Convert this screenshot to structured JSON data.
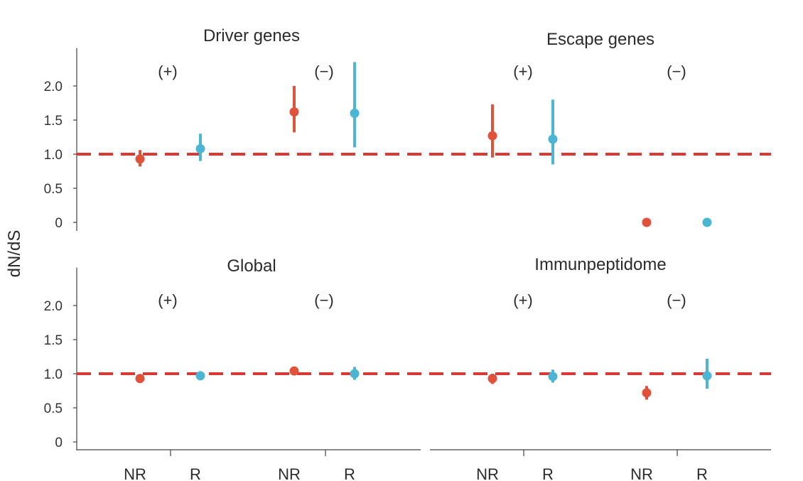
{
  "chart_data": {
    "type": "scatter",
    "ylabel": "dN/dS",
    "reference_line": 1.0,
    "reference_color": "#d93a35",
    "colors": {
      "NR": "#e1523a",
      "R": "#4ab6d4"
    },
    "yticks": [
      "0",
      "0.5",
      "1.0",
      "1.5",
      "2.0"
    ],
    "ylim": [
      0,
      2.4
    ],
    "x_categories": [
      "NR",
      "R",
      "NR",
      "R"
    ],
    "panels": [
      {
        "title": "Driver genes",
        "groups": [
          {
            "label": "(+)",
            "points": [
              {
                "cat": "NR",
                "value": 0.93,
                "low": 0.82,
                "high": 1.06
              },
              {
                "cat": "R",
                "value": 1.08,
                "low": 0.9,
                "high": 1.3
              }
            ]
          },
          {
            "label": "(−)",
            "points": [
              {
                "cat": "NR",
                "value": 1.62,
                "low": 1.32,
                "high": 2.0
              },
              {
                "cat": "R",
                "value": 1.6,
                "low": 1.1,
                "high": 2.35
              }
            ]
          }
        ]
      },
      {
        "title": "Escape genes",
        "groups": [
          {
            "label": "(+)",
            "points": [
              {
                "cat": "NR",
                "value": 1.27,
                "low": 0.95,
                "high": 1.73
              },
              {
                "cat": "R",
                "value": 1.22,
                "low": 0.85,
                "high": 1.8
              }
            ]
          },
          {
            "label": "(−)",
            "points": [
              {
                "cat": "NR",
                "value": 0.0,
                "low": null,
                "high": null
              },
              {
                "cat": "R",
                "value": 0.0,
                "low": null,
                "high": null
              }
            ]
          }
        ]
      },
      {
        "title": "Global",
        "groups": [
          {
            "label": "(+)",
            "points": [
              {
                "cat": "NR",
                "value": 0.93,
                "low": 0.9,
                "high": 0.96
              },
              {
                "cat": "R",
                "value": 0.97,
                "low": 0.94,
                "high": 1.0
              }
            ]
          },
          {
            "label": "(−)",
            "points": [
              {
                "cat": "NR",
                "value": 1.04,
                "low": 1.01,
                "high": 1.07
              },
              {
                "cat": "R",
                "value": 1.0,
                "low": 0.91,
                "high": 1.1
              }
            ]
          }
        ]
      },
      {
        "title": "Immunpeptidome",
        "groups": [
          {
            "label": "(+)",
            "points": [
              {
                "cat": "NR",
                "value": 0.93,
                "low": 0.85,
                "high": 1.0
              },
              {
                "cat": "R",
                "value": 0.96,
                "low": 0.87,
                "high": 1.06
              }
            ]
          },
          {
            "label": "(−)",
            "points": [
              {
                "cat": "NR",
                "value": 0.72,
                "low": 0.62,
                "high": 0.82
              },
              {
                "cat": "R",
                "value": 0.97,
                "low": 0.78,
                "high": 1.22
              }
            ]
          }
        ]
      }
    ]
  }
}
